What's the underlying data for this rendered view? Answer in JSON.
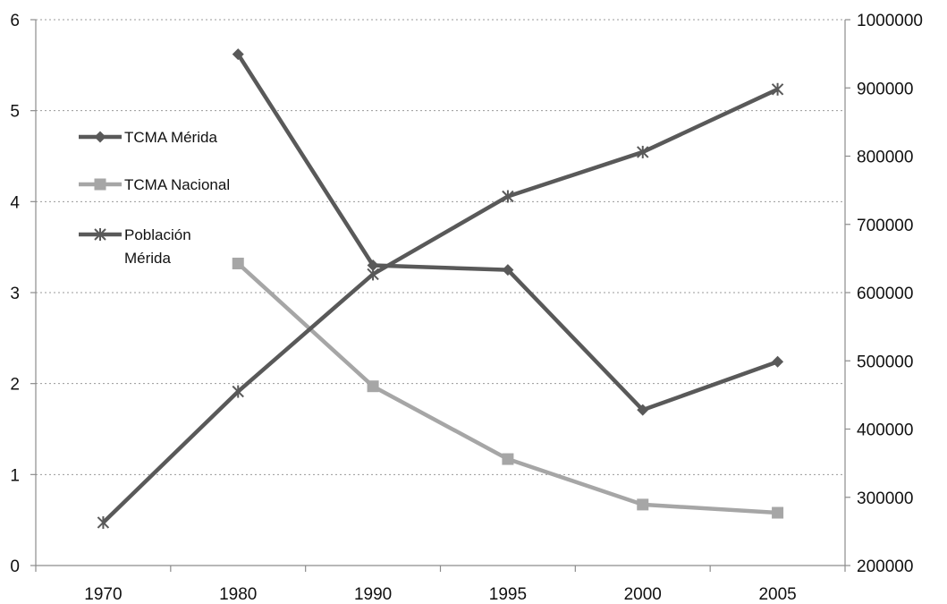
{
  "chart_data": {
    "type": "line",
    "title": "",
    "xlabel": "",
    "ylabel": "",
    "categories": [
      "1970",
      "1980",
      "1990",
      "1995",
      "2000",
      "2005"
    ],
    "y_left": {
      "min": 0,
      "max": 6,
      "ticks": [
        "0",
        "1",
        "2",
        "3",
        "4",
        "5",
        "6"
      ]
    },
    "y_right": {
      "min": 200000,
      "max": 1000000,
      "ticks": [
        "200000",
        "300000",
        "400000",
        "500000",
        "600000",
        "700000",
        "800000",
        "900000",
        "1000000"
      ]
    },
    "grid": "horizontal dotted",
    "legend_position": "upper-left inside plot",
    "series": [
      {
        "name": "TCMA Mérida",
        "axis": "left",
        "marker": "diamond",
        "color": "#595959",
        "values": [
          null,
          5.62,
          3.3,
          3.25,
          1.71,
          2.24
        ]
      },
      {
        "name": "TCMA Nacional",
        "axis": "left",
        "marker": "square",
        "color": "#a6a6a6",
        "values": [
          null,
          3.32,
          1.97,
          1.17,
          0.67,
          0.58
        ]
      },
      {
        "name": "Población Mérida",
        "name_lines": [
          "Población",
          "Mérida"
        ],
        "axis": "right",
        "marker": "star",
        "color": "#595959",
        "values": [
          263000,
          455000,
          627000,
          741000,
          806000,
          898000
        ]
      }
    ]
  }
}
